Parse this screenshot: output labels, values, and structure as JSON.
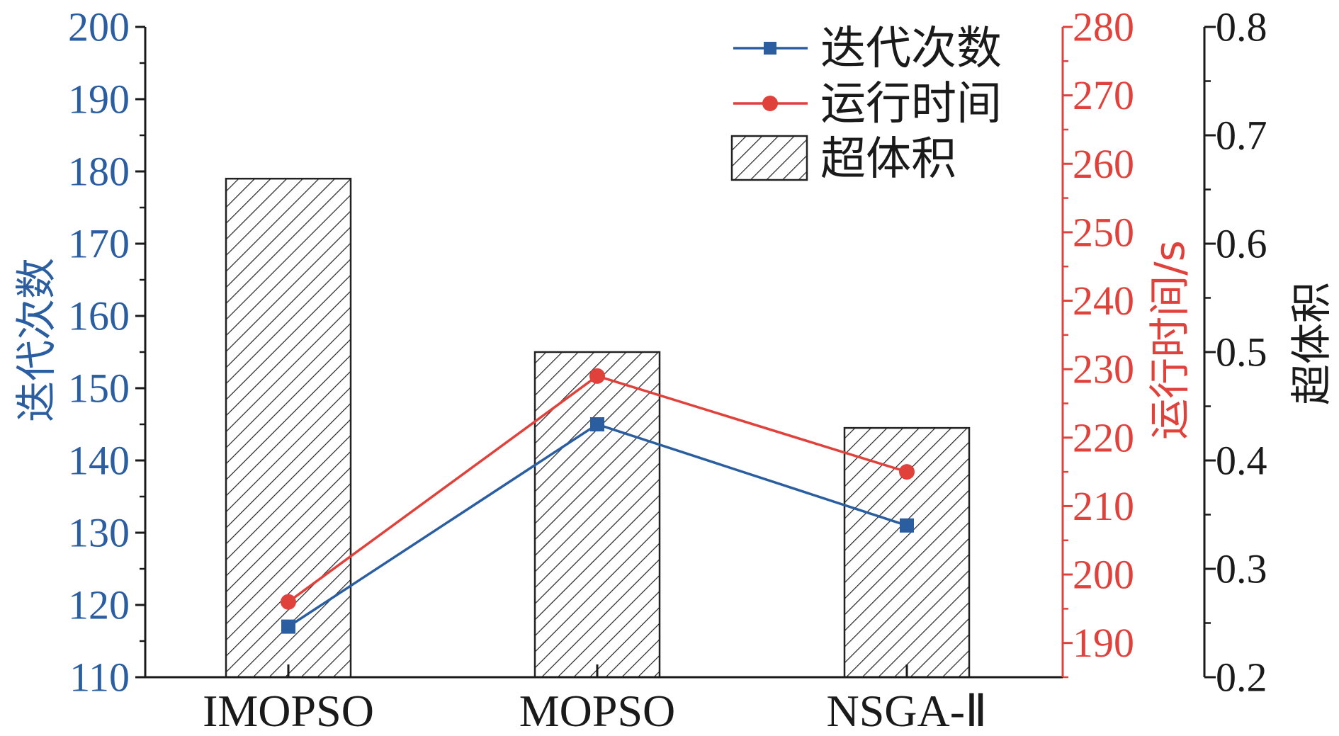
{
  "chart_data": {
    "type": "bar",
    "categories": [
      "IMOPSO",
      "MOPSO",
      "NSGA-Ⅱ"
    ],
    "series": [
      {
        "name": "迭代次数",
        "kind": "line",
        "axis": "left",
        "color": "#2a5ea0",
        "marker": "square",
        "values": [
          117,
          145,
          131
        ]
      },
      {
        "name": "运行时间",
        "kind": "line",
        "axis": "right1",
        "color": "#e0413b",
        "marker": "circle",
        "values": [
          196,
          229,
          215
        ]
      },
      {
        "name": "超体积",
        "kind": "bar",
        "axis": "right2",
        "pattern": "diagonal-hatch",
        "values": [
          0.66,
          0.5,
          0.43
        ]
      }
    ],
    "axes": {
      "left": {
        "label": "迭代次数",
        "range": [
          110,
          200
        ],
        "ticks": [
          110,
          120,
          130,
          140,
          150,
          160,
          170,
          180,
          190,
          200
        ],
        "color": "#2a5ea0"
      },
      "right1": {
        "label": "运行时间/s",
        "range": [
          185,
          280
        ],
        "ticks": [
          190,
          200,
          210,
          220,
          230,
          240,
          250,
          260,
          270,
          280
        ],
        "color": "#e0413b"
      },
      "right2": {
        "label": "超体积",
        "range": [
          0.2,
          0.8
        ],
        "ticks": [
          "0.2",
          "0.3",
          "0.4",
          "0.5",
          "0.6",
          "0.7",
          "0.8"
        ],
        "color": "#1a1a1a"
      }
    },
    "legend": {
      "position": "top-right",
      "entries": [
        "迭代次数",
        "运行时间",
        "超体积"
      ]
    },
    "grid": false
  }
}
